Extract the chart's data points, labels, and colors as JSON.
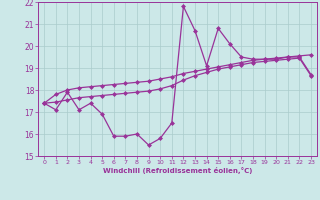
{
  "xlabel": "Windchill (Refroidissement éolien,°C)",
  "x_values": [
    0,
    1,
    2,
    3,
    4,
    5,
    6,
    7,
    8,
    9,
    10,
    11,
    12,
    13,
    14,
    15,
    16,
    17,
    18,
    19,
    20,
    21,
    22,
    23
  ],
  "line1_y": [
    17.4,
    17.1,
    17.9,
    17.1,
    17.4,
    16.9,
    15.9,
    15.9,
    16.0,
    15.5,
    15.8,
    16.5,
    21.8,
    20.7,
    19.1,
    20.8,
    20.1,
    19.5,
    19.4,
    19.4,
    19.4,
    19.5,
    19.5,
    18.7
  ],
  "line2_y": [
    17.4,
    17.8,
    18.0,
    18.1,
    18.15,
    18.2,
    18.25,
    18.3,
    18.35,
    18.4,
    18.5,
    18.6,
    18.75,
    18.85,
    18.95,
    19.05,
    19.15,
    19.25,
    19.35,
    19.4,
    19.45,
    19.5,
    19.55,
    19.6
  ],
  "line3_y": [
    17.4,
    17.45,
    17.55,
    17.65,
    17.7,
    17.75,
    17.8,
    17.85,
    17.9,
    17.95,
    18.05,
    18.2,
    18.45,
    18.65,
    18.8,
    18.95,
    19.05,
    19.15,
    19.25,
    19.3,
    19.35,
    19.4,
    19.45,
    18.65
  ],
  "ylim": [
    15,
    22
  ],
  "xlim": [
    -0.5,
    23.5
  ],
  "yticks": [
    15,
    16,
    17,
    18,
    19,
    20,
    21,
    22
  ],
  "xticks": [
    0,
    1,
    2,
    3,
    4,
    5,
    6,
    7,
    8,
    9,
    10,
    11,
    12,
    13,
    14,
    15,
    16,
    17,
    18,
    19,
    20,
    21,
    22,
    23
  ],
  "line_color": "#993399",
  "bg_color": "#cce8e8",
  "grid_color": "#aacccc",
  "marker": "D",
  "marker_size": 2,
  "linewidth": 0.9
}
